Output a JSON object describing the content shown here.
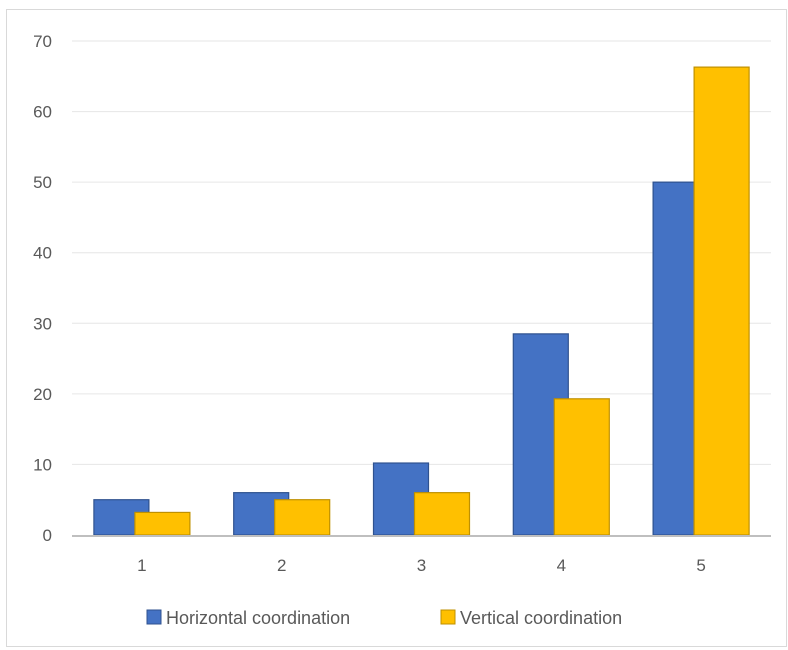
{
  "chart_data": {
    "type": "bar",
    "title": "",
    "xlabel": "",
    "ylabel": "",
    "categories": [
      "1",
      "2",
      "3",
      "4",
      "5"
    ],
    "ylim": [
      0,
      70
    ],
    "yticks": [
      0,
      10,
      20,
      30,
      40,
      50,
      60,
      70
    ],
    "grid": true,
    "legend_position": "bottom",
    "series": [
      {
        "name": "Horizontal coordination",
        "color": "#4472C4",
        "values": [
          5,
          6,
          10.2,
          28.5,
          50
        ]
      },
      {
        "name": "Vertical coordination",
        "color": "#FFC000",
        "values": [
          3.2,
          5,
          6,
          19.3,
          66.3
        ]
      }
    ]
  }
}
